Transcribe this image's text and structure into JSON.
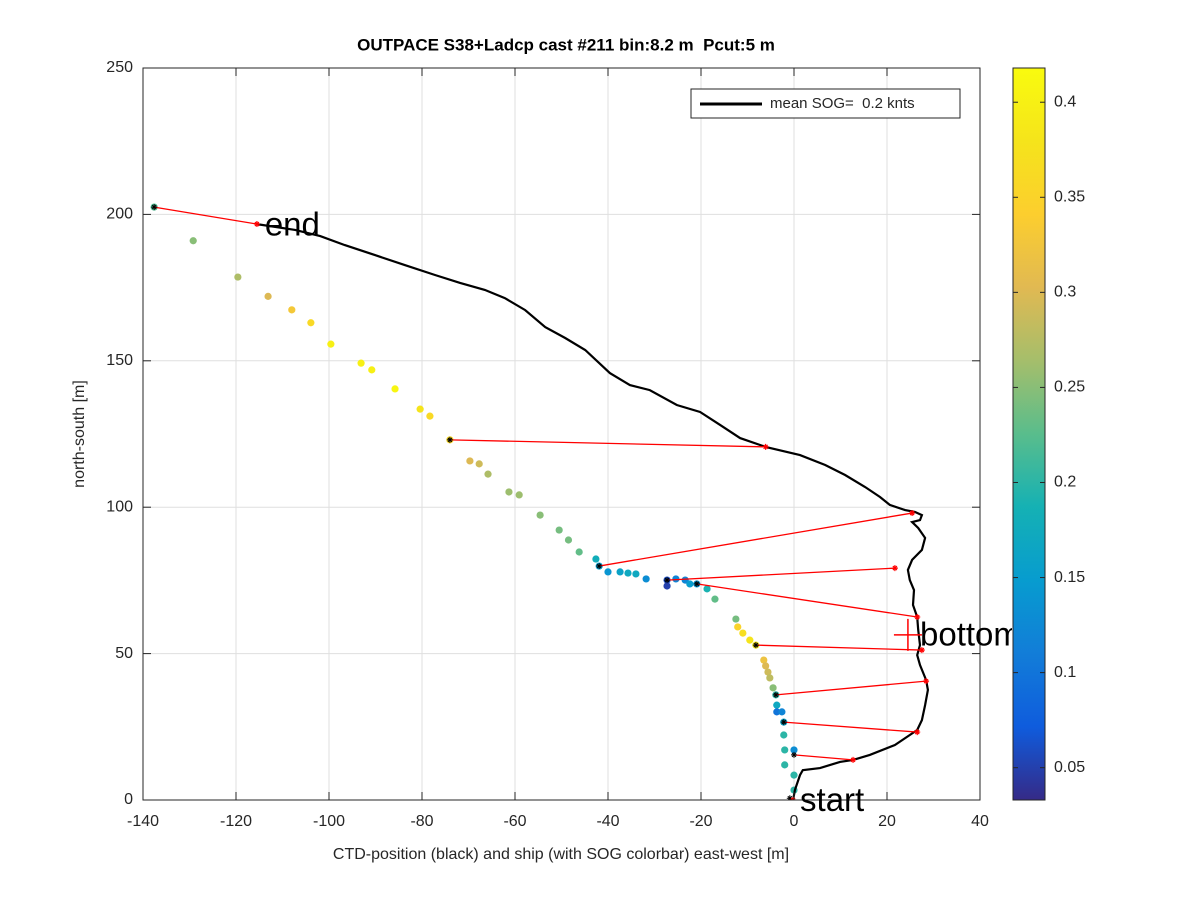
{
  "chart_data": {
    "type": "scatter",
    "title": "OUTPACE S38+Ladcp cast #211 bin:8.2 m  Pcut:5 m",
    "xlabel": "CTD-position (black) and ship (with SOG colorbar) east-west [m]",
    "ylabel": "north-south [m]",
    "xlim": [
      -140,
      40
    ],
    "xticks": [
      -140,
      -120,
      -100,
      -80,
      -60,
      -40,
      -20,
      0,
      20,
      40
    ],
    "ylim": [
      0,
      250
    ],
    "yticks": [
      0,
      50,
      100,
      150,
      200,
      250
    ],
    "grid": true,
    "legend": {
      "loc": "northeast"
    },
    "ctd": {
      "name": "mean SOG=  0.2 knts",
      "color": "#000000",
      "x": [
        -0.2,
        0.2,
        1.3,
        1.9,
        5.6,
        9.9,
        12.7,
        16.3,
        21.7,
        24.9,
        26.5,
        27.5,
        28.2,
        28.8,
        28.4,
        27.1,
        26.5,
        27.1,
        26.7,
        26.5,
        25.6,
        25.8,
        24.9,
        24.5,
        25.4,
        27.5,
        28.2,
        26.7,
        25.4,
        27.1,
        27.5,
        26,
        23.9,
        20.6,
        18.5,
        15.3,
        11,
        6.7,
        1.3,
        -6.1,
        -11.6,
        -15.9,
        -20.2,
        -25.2,
        -31,
        -35.3,
        -39.6,
        -44.9,
        -49.2,
        -53.5,
        -57.8,
        -62.2,
        -66.5,
        -71.8,
        -77.2,
        -83.7,
        -90.1,
        -96.6,
        -101.9,
        -107.3,
        -115.5
      ],
      "y": [
        0,
        3.4,
        8.5,
        10.2,
        10.9,
        13,
        13.7,
        15.4,
        18.8,
        22.2,
        23.9,
        27.3,
        32.4,
        37.6,
        41,
        46.1,
        49.5,
        52.9,
        58.1,
        62.5,
        66.6,
        71.7,
        75.1,
        78.6,
        82,
        85.4,
        89.5,
        92.9,
        94.9,
        95.6,
        97.3,
        98.4,
        99,
        100.8,
        103.5,
        106.9,
        111,
        114.4,
        117.8,
        120.6,
        123.6,
        128.1,
        132.5,
        134.9,
        140,
        141.7,
        145.8,
        153.7,
        157.8,
        161.5,
        167.3,
        171.4,
        174.2,
        176.6,
        179.3,
        182.7,
        186.1,
        189.5,
        192.6,
        194.7,
        196.7
      ]
    },
    "ship": {
      "colormap": "parula",
      "x": [
        -137.6,
        -129.2,
        -119.6,
        -113.1,
        -108,
        -103.9,
        -99.6,
        -93.1,
        -90.8,
        -85.8,
        -80.4,
        -78.3,
        -74,
        -69.7,
        -67.7,
        -65.8,
        -61.3,
        -59.1,
        -54.6,
        -50.5,
        -48.5,
        -46.2,
        -42.6,
        -41.9,
        -40,
        -37.4,
        -35.7,
        -34,
        -31.8,
        -27.3,
        -27.3,
        -25.4,
        -23.4,
        -22.4,
        -20.9,
        -18.7,
        -17,
        -12.5,
        -12.1,
        -11,
        -9.5,
        -8.2,
        -6.5,
        -6.1,
        -5.6,
        -5.2,
        -4.5,
        -3.9,
        -3.7,
        -3.7,
        -2.6,
        -2.2,
        -2.2,
        -2,
        0,
        -2,
        0,
        0
      ],
      "y": [
        202.5,
        191,
        178.6,
        172,
        167.4,
        163,
        155.7,
        149.2,
        146.9,
        140.4,
        133.5,
        131.1,
        123,
        115.8,
        114.8,
        111.3,
        105.2,
        104.2,
        97.3,
        92.2,
        88.8,
        84.7,
        82.3,
        79.9,
        77.9,
        77.9,
        77.5,
        77.2,
        75.5,
        75.1,
        73.1,
        75.5,
        75.1,
        73.8,
        73.8,
        72.1,
        68.6,
        61.8,
        59.1,
        57,
        54.6,
        52.9,
        47.8,
        45.8,
        43.7,
        41.7,
        38.3,
        35.9,
        32.4,
        30.1,
        30.1,
        26.6,
        22.2,
        17.1,
        17.1,
        12,
        8.5,
        3.4
      ],
      "values": [
        0.22,
        0.25,
        0.27,
        0.3,
        0.33,
        0.36,
        0.4,
        0.4,
        0.4,
        0.41,
        0.38,
        0.36,
        0.36,
        0.3,
        0.29,
        0.27,
        0.26,
        0.26,
        0.25,
        0.24,
        0.24,
        0.23,
        0.18,
        0.15,
        0.14,
        0.16,
        0.17,
        0.17,
        0.13,
        0.06,
        0.05,
        0.12,
        0.12,
        0.15,
        0.14,
        0.19,
        0.23,
        0.24,
        0.35,
        0.37,
        0.38,
        0.38,
        0.32,
        0.3,
        0.29,
        0.28,
        0.25,
        0.2,
        0.17,
        0.1,
        0.12,
        0.16,
        0.2,
        0.2,
        0.13,
        0.2,
        0.2,
        0.2
      ]
    },
    "links": {
      "color": "#ff0000",
      "segments": [
        {
          "x": [
            -137.6,
            -115.5
          ],
          "y": [
            202.5,
            196.7
          ]
        },
        {
          "x": [
            -74,
            -6.1
          ],
          "y": [
            123,
            120.6
          ]
        },
        {
          "x": [
            -41.9,
            25.4
          ],
          "y": [
            79.9,
            98
          ]
        },
        {
          "x": [
            -27.3,
            21.7
          ],
          "y": [
            75.1,
            79.2
          ]
        },
        {
          "x": [
            -20.9,
            26.5
          ],
          "y": [
            73.8,
            62.5
          ]
        },
        {
          "x": [
            -8.2,
            27.5
          ],
          "y": [
            52.9,
            51.2
          ]
        },
        {
          "x": [
            -3.9,
            28.4
          ],
          "y": [
            35.9,
            40.6
          ]
        },
        {
          "x": [
            -2.2,
            26.5
          ],
          "y": [
            26.6,
            23.2
          ]
        },
        {
          "x": [
            0,
            12.7
          ],
          "y": [
            15.4,
            13.7
          ]
        },
        {
          "x": [
            -0.9,
            -0.2
          ],
          "y": [
            0.6,
            0
          ]
        }
      ]
    },
    "bottom_marker": {
      "x": 24.5,
      "y": 56.4,
      "color": "#ff0000"
    },
    "annotations": [
      {
        "text": "end",
        "x": -113.8,
        "y": 195.7
      },
      {
        "text": "bottom",
        "x": 27.1,
        "y": 55.7
      },
      {
        "text": "start",
        "x": 1.3,
        "y": -0.7
      }
    ],
    "colorbar": {
      "clim": [
        0.033,
        0.418
      ],
      "ticks": [
        0.05,
        0.1,
        0.15,
        0.2,
        0.25,
        0.3,
        0.35,
        0.4
      ]
    }
  }
}
